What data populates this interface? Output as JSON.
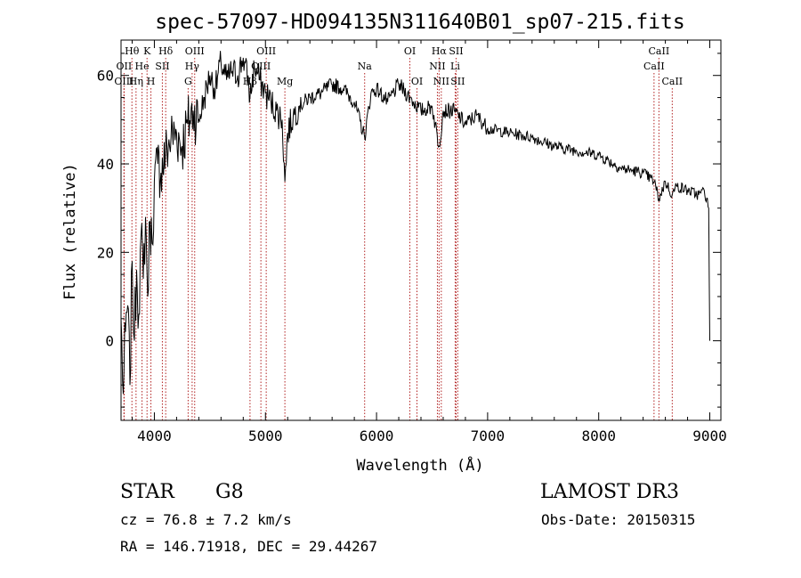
{
  "chart_data": {
    "type": "line",
    "title": "spec-57097-HD094135N311640B01_sp07-215.fits",
    "xlabel": "Wavelength (Å)",
    "ylabel": "Flux (relative)",
    "xlim": [
      3700,
      9100
    ],
    "ylim": [
      -18,
      68
    ],
    "xticks": [
      4000,
      5000,
      6000,
      7000,
      8000,
      9000
    ],
    "yticks": [
      0,
      20,
      40,
      60
    ],
    "series": [
      {
        "name": "spectrum",
        "x": [
          3700,
          3720,
          3740,
          3760,
          3780,
          3800,
          3820,
          3840,
          3860,
          3880,
          3900,
          3920,
          3940,
          3960,
          3980,
          4000,
          4030,
          4060,
          4100,
          4150,
          4200,
          4250,
          4300,
          4350,
          4400,
          4450,
          4500,
          4550,
          4600,
          4650,
          4700,
          4750,
          4800,
          4850,
          4861,
          4900,
          4950,
          5000,
          5050,
          5100,
          5150,
          5175,
          5200,
          5250,
          5300,
          5400,
          5500,
          5600,
          5700,
          5800,
          5893,
          5950,
          6000,
          6100,
          6200,
          6300,
          6400,
          6500,
          6563,
          6600,
          6700,
          6800,
          6900,
          7000,
          7200,
          7400,
          7600,
          7800,
          8000,
          8200,
          8400,
          8500,
          8542,
          8600,
          8662,
          8700,
          8800,
          8900,
          8950,
          8990,
          9000
        ],
        "y": [
          5,
          -12,
          2,
          8,
          -10,
          18,
          0,
          16,
          6,
          24,
          14,
          28,
          10,
          27,
          22,
          36,
          40,
          38,
          42,
          46,
          47,
          44,
          49,
          52,
          50,
          55,
          60,
          57,
          63,
          59,
          61,
          60,
          64,
          58,
          55,
          62,
          59,
          56,
          54,
          52,
          50,
          36,
          47,
          51,
          53,
          55,
          56,
          58,
          57,
          54,
          46,
          56,
          57,
          54,
          58,
          55,
          52,
          53,
          44,
          52,
          52,
          49,
          51,
          48,
          47,
          46,
          44,
          43,
          42,
          39,
          38,
          36,
          32,
          36,
          33,
          35,
          34,
          33,
          34,
          30,
          0
        ]
      }
    ],
    "lines": [
      {
        "label": "Hθ",
        "x": 3798,
        "row": 0
      },
      {
        "label": "OII",
        "x": 3727,
        "row": 1
      },
      {
        "label": "OIII",
        "x": 3727,
        "row": 2
      },
      {
        "label": "K",
        "x": 3934,
        "row": 0
      },
      {
        "label": "He",
        "x": 3889,
        "row": 1
      },
      {
        "label": "Hη",
        "x": 3835,
        "row": 2
      },
      {
        "label": "Hδ",
        "x": 4102,
        "row": 0
      },
      {
        "label": "SII",
        "x": 4072,
        "row": 1
      },
      {
        "label": "H",
        "x": 3969,
        "row": 2
      },
      {
        "label": "OIII",
        "x": 4363,
        "row": 0
      },
      {
        "label": "Hγ",
        "x": 4340,
        "row": 1
      },
      {
        "label": "G",
        "x": 4304,
        "row": 2
      },
      {
        "label": "OIII",
        "x": 5007,
        "row": 0
      },
      {
        "label": "OIII",
        "x": 4959,
        "row": 1
      },
      {
        "label": "Hβ",
        "x": 4861,
        "row": 2
      },
      {
        "label": "Mg",
        "x": 5175,
        "row": 2
      },
      {
        "label": "Na",
        "x": 5893,
        "row": 1
      },
      {
        "label": "OI",
        "x": 6300,
        "row": 0
      },
      {
        "label": "OI",
        "x": 6364,
        "row": 2
      },
      {
        "label": "Hα",
        "x": 6563,
        "row": 0
      },
      {
        "label": "SII",
        "x": 6716,
        "row": 0
      },
      {
        "label": "NII",
        "x": 6548,
        "row": 1
      },
      {
        "label": "Li",
        "x": 6708,
        "row": 1
      },
      {
        "label": "NII",
        "x": 6583,
        "row": 2
      },
      {
        "label": "SII",
        "x": 6731,
        "row": 2
      },
      {
        "label": "CaII",
        "x": 8542,
        "row": 0
      },
      {
        "label": "CaII",
        "x": 8498,
        "row": 1
      },
      {
        "label": "CaII",
        "x": 8662,
        "row": 2
      }
    ]
  },
  "info": {
    "class": "STAR",
    "subclass": "G8",
    "survey": "LAMOST DR3",
    "cz": "cz = 76.8 ± 7.2 km/s",
    "obsdate": "Obs-Date: 20150315",
    "coords": "RA = 146.71918, DEC =  29.44267"
  },
  "colors": {
    "axis": "#000000",
    "spectrum": "#000000",
    "lines": "#b22222"
  }
}
